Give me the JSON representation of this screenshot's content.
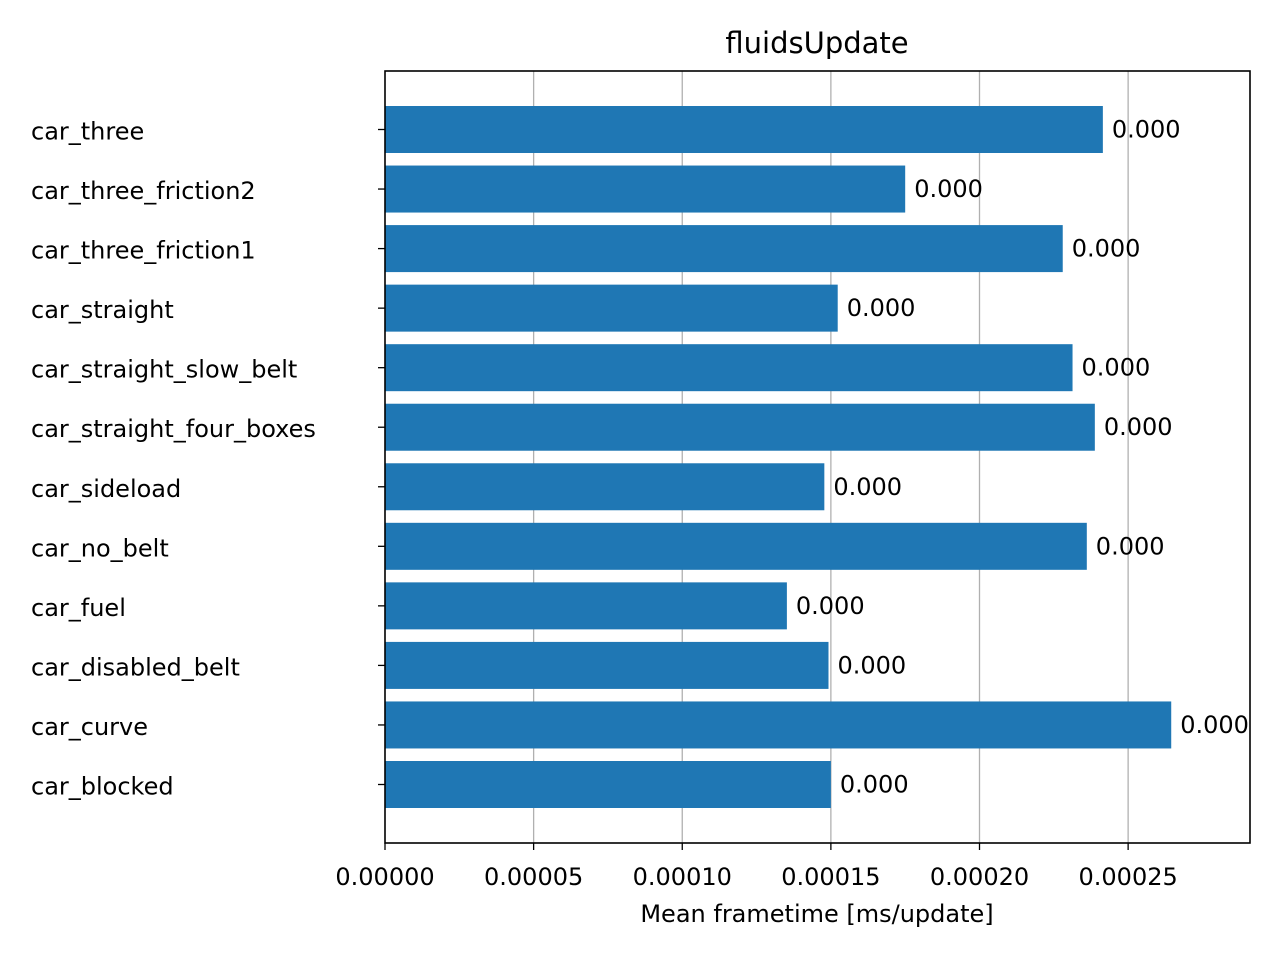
{
  "chart_data": {
    "type": "bar",
    "orientation": "horizontal",
    "title": "fluidsUpdate",
    "xlabel": "Mean frametime [ms/update]",
    "ylabel": "",
    "xlim": [
      0,
      0.000291
    ],
    "xticks": [
      0.0,
      5e-05,
      0.0001,
      0.00015,
      0.0002,
      0.00025
    ],
    "xtick_labels": [
      "0.00000",
      "0.00005",
      "0.00010",
      "0.00015",
      "0.00020",
      "0.00025"
    ],
    "grid": "x",
    "bar_color": "#1f77b4",
    "categories": [
      "car_three",
      "car_three_friction2",
      "car_three_friction1",
      "car_straight",
      "car_straight_slow_belt",
      "car_straight_four_boxes",
      "car_sideload",
      "car_no_belt",
      "car_fuel",
      "car_disabled_belt",
      "car_curve",
      "car_blocked"
    ],
    "values": [
      0.0002415,
      0.000175,
      0.000228,
      0.0001523,
      0.0002313,
      0.0002388,
      0.0001478,
      0.0002361,
      0.0001352,
      0.0001492,
      0.0002645,
      0.00015
    ],
    "data_labels": [
      "0.000",
      "0.000",
      "0.000",
      "0.000",
      "0.000",
      "0.000",
      "0.000",
      "0.000",
      "0.000",
      "0.000",
      "0.000",
      "0.000"
    ]
  }
}
